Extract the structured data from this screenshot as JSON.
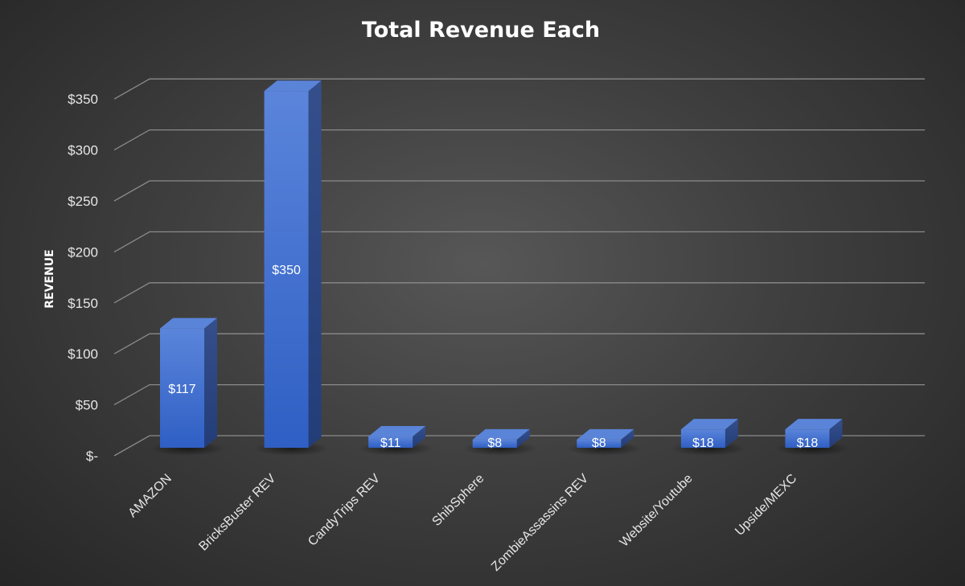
{
  "chart_data": {
    "type": "bar",
    "style": "3d-column",
    "title": "Total Revenue Each",
    "xlabel": "",
    "ylabel": "REVENUE",
    "ylim": [
      0,
      350
    ],
    "ytick_values": [
      0,
      50,
      100,
      150,
      200,
      250,
      300,
      350
    ],
    "ytick_labels": [
      "$-",
      "$50",
      "$100",
      "$150",
      "$200",
      "$250",
      "$300",
      "$350"
    ],
    "categories": [
      "AMAZON",
      "BricksBuster REV",
      "CandyTrips REV",
      "ShibSphere",
      "ZombieAssassins REV",
      "Website/Youtube",
      "Upside/MEXC"
    ],
    "values": [
      117,
      350,
      11,
      8,
      8,
      18,
      18
    ],
    "data_labels": [
      "$117",
      "$350",
      "$11",
      "$8",
      "$8",
      "$18",
      "$18"
    ],
    "grid": true,
    "legend": "none",
    "colors": {
      "bar_front": "#3f6fd0",
      "bar_side": "#2a4a8e",
      "bar_top": "#5a84d8",
      "gridline": "#8a8a8a"
    }
  }
}
